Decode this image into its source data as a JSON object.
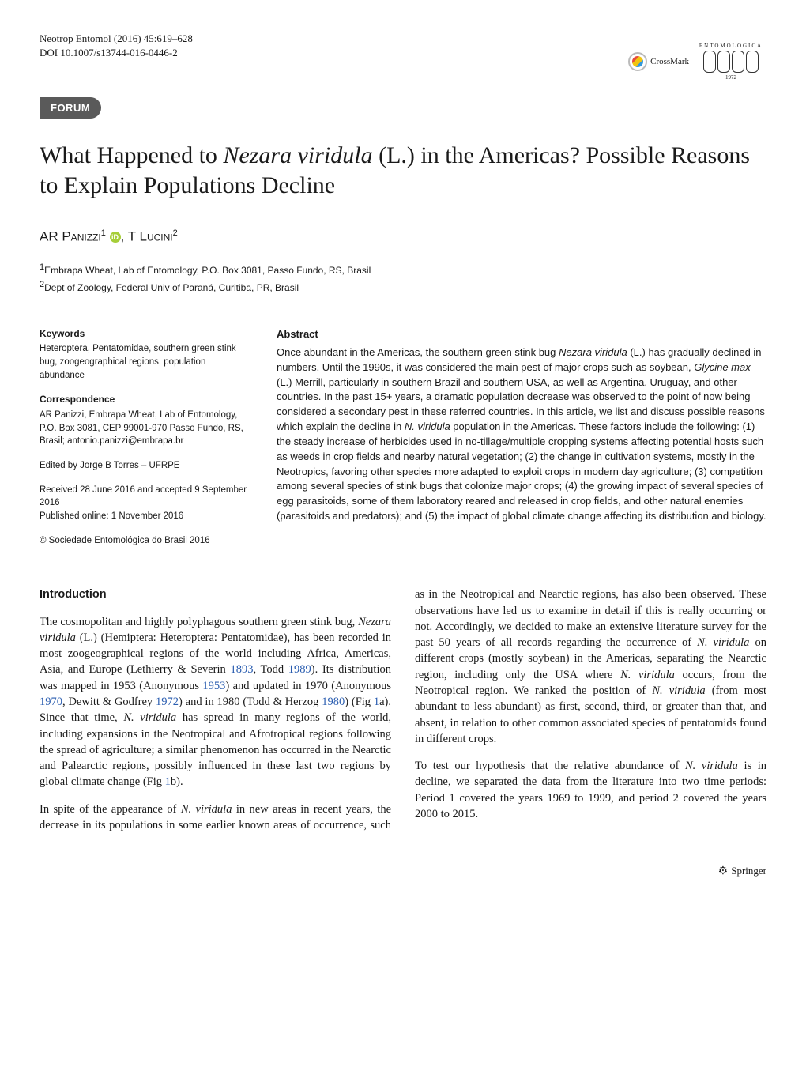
{
  "header": {
    "journal_line": "Neotrop Entomol (2016) 45:619–628",
    "doi_line": "DOI 10.1007/s13744-016-0446-2",
    "crossmark_label": "CrossMark",
    "logo_top_text": "ENTOMOLOGICA",
    "logo_bottom_text": "· 1972 ·"
  },
  "section_label": "FORUM",
  "title_parts": {
    "pre": "What Happened to ",
    "species": "Nezara viridula",
    "post": " (L.) in the Americas? Possible Reasons to Explain Populations Decline"
  },
  "authors": {
    "a1_initials": "AR P",
    "a1_name": "anizzi",
    "a1_sup": "1",
    "a2_initials": "T L",
    "a2_name": "ucini",
    "a2_sup": "2",
    "orcid_glyph": "iD"
  },
  "affiliations": {
    "aff1_sup": "1",
    "aff1": "Embrapa Wheat, Lab of Entomology, P.O. Box 3081,  Passo Fundo, RS, Brasil",
    "aff2_sup": "2",
    "aff2": "Dept of Zoology, Federal Univ of Paraná, Curitiba, PR, Brasil"
  },
  "meta": {
    "keywords_heading": "Keywords",
    "keywords_text": "Heteroptera, Pentatomidae, southern green stink bug, zoogeographical regions, population abundance",
    "correspondence_heading": "Correspondence",
    "correspondence_text": "AR Panizzi, Embrapa Wheat, Lab of Entomology, P.O. Box 3081, CEP 99001-970 Passo Fundo, RS, Brasil; antonio.panizzi@embrapa.br",
    "edited_by": "Edited by Jorge B Torres – UFRPE",
    "received": "Received 28 June 2016 and accepted 9 September 2016",
    "published": "Published online: 1 November 2016",
    "copyright": "© Sociedade Entomológica do Brasil 2016"
  },
  "abstract": {
    "heading": "Abstract",
    "text_1": "Once abundant in the Americas, the southern green stink bug ",
    "species1": "Nezara viridula",
    "text_2": " (L.) has gradually declined in numbers. Until the 1990s, it was considered the main pest of major crops such as soybean, ",
    "species2": "Glycine max",
    "text_3": " (L.) Merrill, particularly in southern Brazil and southern USA, as well as Argentina, Uruguay, and other countries. In the past 15+ years, a dramatic population decrease was observed to the point of now being considered a secondary pest in these referred countries. In this article, we list and discuss possible reasons which explain the decline in ",
    "species3": "N. viridula",
    "text_4": " population in the Americas. These factors include the following: (1) the steady increase of herbicides used in no-tillage/multiple cropping systems affecting potential hosts such as weeds in crop fields and nearby natural vegetation; (2) the change in cultivation systems, mostly in the Neotropics, favoring other species more adapted to exploit crops in modern day agriculture; (3) competition among several species of stink bugs that colonize major crops; (4) the growing impact of several species of egg parasitoids, some of them laboratory reared and released in crop fields, and other natural enemies (parasitoids and predators); and (5) the impact of global climate change affecting its distribution and biology."
  },
  "body": {
    "intro_heading": "Introduction",
    "p1_a": "The cosmopolitan and highly polyphagous southern green stink bug, ",
    "p1_species": "Nezara viridula",
    "p1_b": " (L.) (Hemiptera: Heteroptera: Pentatomidae), has been recorded in most zoogeographical regions of the world including Africa, Americas, Asia, and Europe (Lethierry & Severin ",
    "p1_ref1": "1893",
    "p1_c": ", Todd ",
    "p1_ref2": "1989",
    "p1_d": "). Its distribution was mapped in 1953 (Anonymous ",
    "p1_ref3": "1953",
    "p1_e": ") and updated in 1970 (Anonymous ",
    "p1_ref4": "1970",
    "p1_f": ", Dewitt & Godfrey ",
    "p1_ref5": "1972",
    "p1_g": ") and in 1980 (Todd & Herzog ",
    "p1_ref6": "1980",
    "p1_h": ") (Fig ",
    "p1_ref7": "1",
    "p1_i": "a). Since that time, ",
    "p1_species2": "N. viridula",
    "p1_j": " has spread in many regions of the world, including expansions in the Neotropical and Afrotropical regions following the spread of agriculture; a similar phenomenon has occurred in the Nearctic and Palearctic regions, possibly influenced in these last two regions by global climate change (Fig ",
    "p1_ref8": "1",
    "p1_k": "b).",
    "p2_a": "In spite of the appearance of ",
    "p2_species": "N. viridula",
    "p2_b": " in new areas in recent years, the decrease in its populations in some earlier known areas of occurrence, such as in the Neotropical and Nearctic regions, has also been observed. These observations have led us to examine in detail if this is really occurring or not. Accordingly, we decided to make an extensive literature survey for the past 50 years of all records regarding the occurrence of ",
    "p2_species2": "N. viridula",
    "p2_c": " on different crops (mostly soybean) in the Americas, separating the Nearctic region, including only the USA where ",
    "p2_species3": "N. viridula",
    "p2_d": " occurs, from the Neotropical region. We ranked the position of ",
    "p2_species4": "N. viridula",
    "p2_e": " (from most abundant to less abundant) as first, second, third, or greater than that, and absent, in relation to other common associated species of pentatomids found in different crops.",
    "p3_a": "To test our hypothesis that the relative abundance of ",
    "p3_species": "N. viridula",
    "p3_b": " is in decline, we separated the data from the literature into two time periods: Period 1 covered the years 1969 to 1999, and period 2 covered the years 2000 to 2015."
  },
  "footer": {
    "publisher": "Springer"
  },
  "colors": {
    "banner_bg": "#5a5a5a",
    "banner_text": "#ffffff",
    "ref_link": "#2a5db0",
    "orcid": "#a6ce39"
  }
}
